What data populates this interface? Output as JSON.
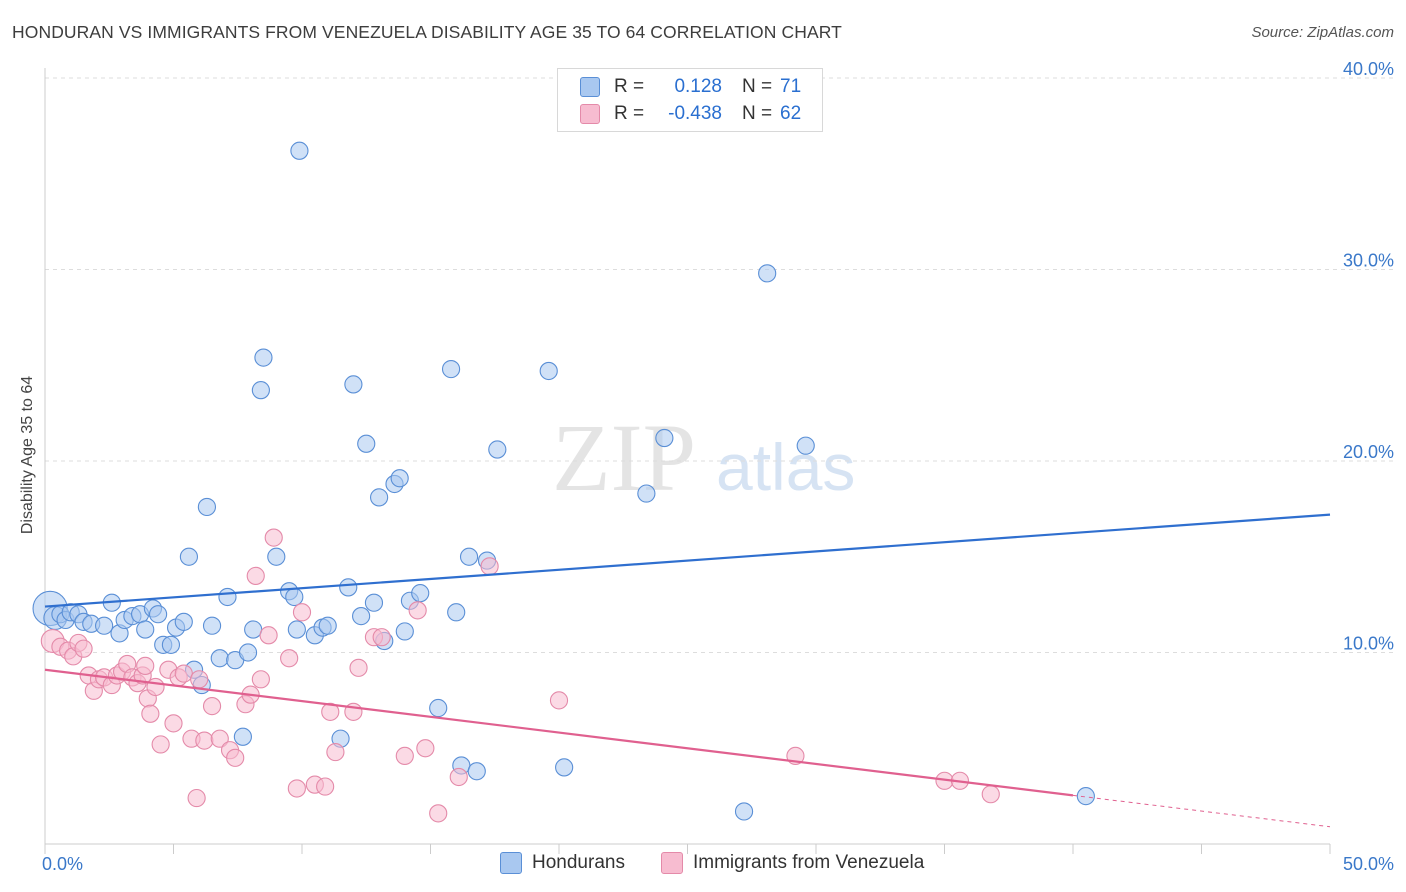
{
  "title": "HONDURAN VS IMMIGRANTS FROM VENEZUELA DISABILITY AGE 35 TO 64 CORRELATION CHART",
  "source": "Source: ZipAtlas.com",
  "watermark": {
    "zip": "ZIP",
    "atlas": "atlas"
  },
  "legend": {
    "rows": [
      {
        "r_label": "R =",
        "r_value": "0.128",
        "n_label": "N =",
        "n_value": "71"
      },
      {
        "r_label": "R =",
        "r_value": "-0.438",
        "n_label": "N =",
        "n_value": "62"
      }
    ]
  },
  "bottom_legend": {
    "hondurans": "Hondurans",
    "venezuela": "Immigrants from Venezuela"
  },
  "colors": {
    "honduran_fill": "#a9c8f0",
    "honduran_stroke": "#5a8fd6",
    "honduran_line": "#2f6fcf",
    "venezuela_fill": "#f7bcd0",
    "venezuela_stroke": "#e48aa9",
    "venezuela_line": "#e0608f",
    "tick_text": "#3a78c9",
    "grid": "#dddddd"
  },
  "chart_data": {
    "type": "scatter",
    "title": "HONDURAN VS IMMIGRANTS FROM VENEZUELA DISABILITY AGE 35 TO 64 CORRELATION CHART",
    "xlabel": "",
    "ylabel": "Disability Age 35 to 64",
    "xlim": [
      0,
      50
    ],
    "ylim": [
      0,
      40
    ],
    "x_tick_labels": {
      "min": "0.0%",
      "max": "50.0%"
    },
    "y_ticks": [
      {
        "value": 10,
        "label": "10.0%"
      },
      {
        "value": 20,
        "label": "20.0%"
      },
      {
        "value": 30,
        "label": "30.0%"
      },
      {
        "value": 40,
        "label": "40.0%"
      }
    ],
    "grid": true,
    "series": [
      {
        "name": "Hondurans",
        "r": 0.128,
        "n": 71,
        "trend": {
          "x0": 0,
          "y0": 12.4,
          "x1": 50,
          "y1": 17.2,
          "solid_to": 50
        },
        "points": [
          [
            0.2,
            12.3,
            18
          ],
          [
            0.4,
            11.8,
            12
          ],
          [
            0.6,
            12.0,
            9
          ],
          [
            0.8,
            11.7,
            9
          ],
          [
            1.0,
            12.1,
            9
          ],
          [
            1.3,
            12.0,
            9
          ],
          [
            1.5,
            11.6,
            9
          ],
          [
            1.8,
            11.5,
            9
          ],
          [
            2.3,
            11.4,
            9
          ],
          [
            2.6,
            12.6,
            9
          ],
          [
            2.9,
            11.0,
            9
          ],
          [
            3.1,
            11.7,
            9
          ],
          [
            3.4,
            11.9,
            9
          ],
          [
            3.7,
            12.0,
            9
          ],
          [
            3.9,
            11.2,
            9
          ],
          [
            4.2,
            12.3,
            9
          ],
          [
            4.4,
            12.0,
            9
          ],
          [
            4.6,
            10.4,
            9
          ],
          [
            4.9,
            10.4,
            9
          ],
          [
            5.1,
            11.3,
            9
          ],
          [
            5.4,
            11.6,
            9
          ],
          [
            5.6,
            15.0,
            9
          ],
          [
            5.8,
            9.1,
            9
          ],
          [
            6.1,
            8.3,
            9
          ],
          [
            6.3,
            17.6,
            9
          ],
          [
            6.5,
            11.4,
            9
          ],
          [
            6.8,
            9.7,
            9
          ],
          [
            7.1,
            12.9,
            9
          ],
          [
            7.4,
            9.6,
            9
          ],
          [
            7.7,
            5.6,
            9
          ],
          [
            7.9,
            10.0,
            9
          ],
          [
            8.1,
            11.2,
            9
          ],
          [
            8.4,
            23.7,
            9
          ],
          [
            8.5,
            25.4,
            9
          ],
          [
            9.0,
            15.0,
            9
          ],
          [
            9.5,
            13.2,
            9
          ],
          [
            9.7,
            12.9,
            9
          ],
          [
            9.8,
            11.2,
            9
          ],
          [
            9.9,
            36.2,
            9
          ],
          [
            10.5,
            10.9,
            9
          ],
          [
            10.8,
            11.3,
            9
          ],
          [
            11.0,
            11.4,
            9
          ],
          [
            11.5,
            5.5,
            9
          ],
          [
            11.8,
            13.4,
            9
          ],
          [
            12.0,
            24.0,
            9
          ],
          [
            12.3,
            11.9,
            9
          ],
          [
            12.5,
            20.9,
            9
          ],
          [
            12.8,
            12.6,
            9
          ],
          [
            13.0,
            18.1,
            9
          ],
          [
            13.2,
            10.6,
            9
          ],
          [
            13.6,
            18.8,
            9
          ],
          [
            13.8,
            19.1,
            9
          ],
          [
            14.0,
            11.1,
            9
          ],
          [
            14.2,
            12.7,
            9
          ],
          [
            14.6,
            13.1,
            9
          ],
          [
            15.3,
            7.1,
            9
          ],
          [
            15.8,
            24.8,
            9
          ],
          [
            16.0,
            12.1,
            9
          ],
          [
            16.2,
            4.1,
            9
          ],
          [
            16.5,
            15.0,
            9
          ],
          [
            17.2,
            14.8,
            9
          ],
          [
            17.6,
            20.6,
            9
          ],
          [
            19.6,
            24.7,
            9
          ],
          [
            20.2,
            4.0,
            9
          ],
          [
            23.4,
            18.3,
            9
          ],
          [
            24.1,
            21.2,
            9
          ],
          [
            27.2,
            1.7,
            9
          ],
          [
            28.1,
            29.8,
            9
          ],
          [
            29.6,
            20.8,
            9
          ],
          [
            40.5,
            2.5,
            9
          ],
          [
            16.8,
            3.8,
            9
          ]
        ]
      },
      {
        "name": "Immigrants from Venezuela",
        "r": -0.438,
        "n": 62,
        "trend": {
          "x0": 0,
          "y0": 9.1,
          "x1": 50,
          "y1": 0.9,
          "solid_to": 40.0
        },
        "points": [
          [
            0.3,
            10.6,
            12
          ],
          [
            0.6,
            10.3,
            9
          ],
          [
            0.9,
            10.1,
            9
          ],
          [
            1.1,
            9.8,
            9
          ],
          [
            1.3,
            10.5,
            9
          ],
          [
            1.5,
            10.2,
            9
          ],
          [
            1.7,
            8.8,
            9
          ],
          [
            1.9,
            8.0,
            9
          ],
          [
            2.1,
            8.6,
            9
          ],
          [
            2.3,
            8.7,
            9
          ],
          [
            2.6,
            8.3,
            9
          ],
          [
            2.8,
            8.8,
            9
          ],
          [
            3.0,
            9.0,
            9
          ],
          [
            3.2,
            9.4,
            9
          ],
          [
            3.4,
            8.7,
            9
          ],
          [
            3.6,
            8.4,
            9
          ],
          [
            3.8,
            8.8,
            9
          ],
          [
            4.0,
            7.6,
            9
          ],
          [
            4.1,
            6.8,
            9
          ],
          [
            4.3,
            8.2,
            9
          ],
          [
            4.5,
            5.2,
            9
          ],
          [
            4.8,
            9.1,
            9
          ],
          [
            5.0,
            6.3,
            9
          ],
          [
            5.2,
            8.7,
            9
          ],
          [
            5.4,
            8.9,
            9
          ],
          [
            5.7,
            5.5,
            9
          ],
          [
            5.9,
            2.4,
            9
          ],
          [
            6.2,
            5.4,
            9
          ],
          [
            6.5,
            7.2,
            9
          ],
          [
            6.8,
            5.5,
            9
          ],
          [
            7.2,
            4.9,
            9
          ],
          [
            7.4,
            4.5,
            9
          ],
          [
            7.8,
            7.3,
            9
          ],
          [
            8.0,
            7.8,
            9
          ],
          [
            8.2,
            14.0,
            9
          ],
          [
            8.4,
            8.6,
            9
          ],
          [
            8.7,
            10.9,
            9
          ],
          [
            8.9,
            16.0,
            9
          ],
          [
            9.5,
            9.7,
            9
          ],
          [
            9.8,
            2.9,
            9
          ],
          [
            10.0,
            12.1,
            9
          ],
          [
            10.5,
            3.1,
            9
          ],
          [
            10.9,
            3.0,
            9
          ],
          [
            11.1,
            6.9,
            9
          ],
          [
            11.3,
            4.8,
            9
          ],
          [
            12.0,
            6.9,
            9
          ],
          [
            12.8,
            10.8,
            9
          ],
          [
            13.1,
            10.8,
            9
          ],
          [
            14.0,
            4.6,
            9
          ],
          [
            14.5,
            12.2,
            9
          ],
          [
            14.8,
            5.0,
            9
          ],
          [
            15.3,
            1.6,
            9
          ],
          [
            16.1,
            3.5,
            9
          ],
          [
            17.3,
            14.5,
            9
          ],
          [
            20.0,
            7.5,
            9
          ],
          [
            29.2,
            4.6,
            9
          ],
          [
            35.0,
            3.3,
            9
          ],
          [
            35.6,
            3.3,
            9
          ],
          [
            36.8,
            2.6,
            9
          ],
          [
            12.2,
            9.2,
            9
          ],
          [
            6.0,
            8.6,
            9
          ],
          [
            3.9,
            9.3,
            9
          ]
        ]
      }
    ]
  }
}
